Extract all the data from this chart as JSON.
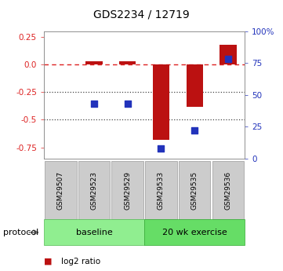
{
  "title": "GDS2234 / 12719",
  "samples": [
    "GSM29507",
    "GSM29523",
    "GSM29529",
    "GSM29533",
    "GSM29535",
    "GSM29536"
  ],
  "log2_ratio": [
    0.0,
    0.03,
    0.03,
    -0.68,
    -0.38,
    0.18
  ],
  "percentile_rank": [
    null,
    43,
    43,
    8,
    22,
    78
  ],
  "group_baseline_n": 3,
  "group_exercise_n": 3,
  "group_baseline_label": "baseline",
  "group_exercise_label": "20 wk exercise",
  "group_baseline_color": "#90EE90",
  "group_exercise_color": "#66DD66",
  "ylim_left": [
    -0.85,
    0.3
  ],
  "ylim_right": [
    0,
    100
  ],
  "yticks_left": [
    0.25,
    0.0,
    -0.25,
    -0.5,
    -0.75
  ],
  "yticks_right": [
    100,
    75,
    50,
    25,
    0
  ],
  "bar_color": "#BB1111",
  "point_color": "#2233BB",
  "dashed_line_color": "#DD2222",
  "dotted_line_color": "#444444",
  "sample_box_color": "#CCCCCC",
  "bar_width": 0.5,
  "point_size": 35,
  "title_fontsize": 10,
  "tick_fontsize": 7.5,
  "sample_fontsize": 6.5,
  "protocol_fontsize": 8,
  "legend_fontsize": 7.5
}
